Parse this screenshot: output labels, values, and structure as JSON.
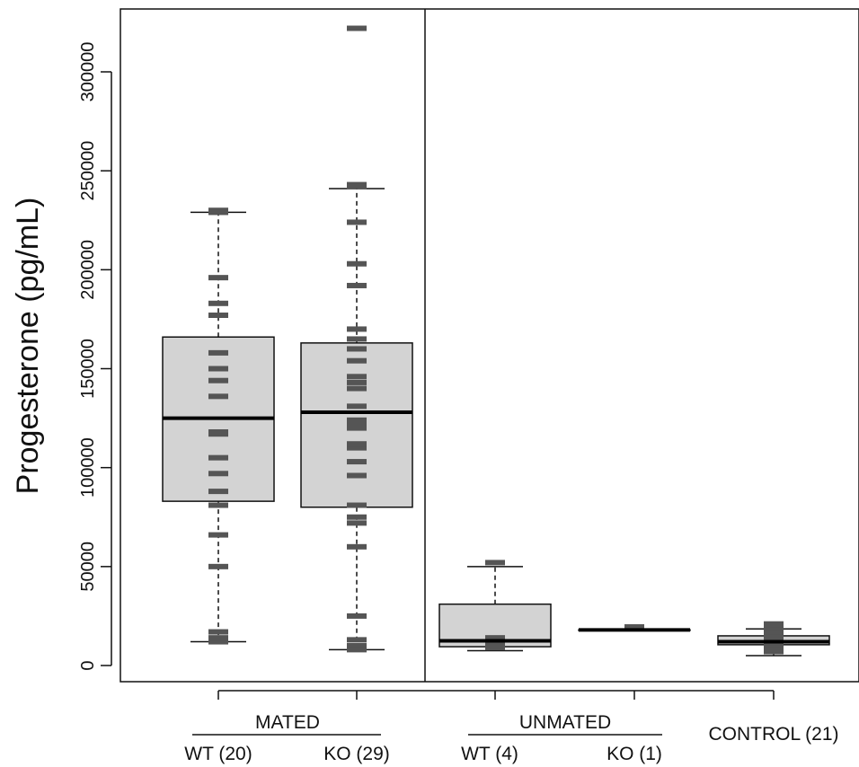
{
  "chart_data": {
    "type": "box",
    "ylabel": "Progesterone (pg/mL)",
    "xlabel": "",
    "ylim": [
      -8000,
      330000
    ],
    "yticks": [
      "0",
      "50000",
      "100000",
      "150000",
      "200000",
      "250000",
      "300000"
    ],
    "group_labels": [
      "MATED",
      "UNMATED"
    ],
    "boxes": [
      {
        "label": "WT (20)",
        "group": "MATED",
        "stats": {
          "min": 12000,
          "q1": 83000,
          "median": 125000,
          "q3": 166000,
          "max": 229000
        },
        "points": [
          12000,
          14000,
          17000,
          50000,
          66000,
          81000,
          88000,
          97000,
          105000,
          117000,
          118000,
          136000,
          144000,
          150000,
          158000,
          177000,
          183000,
          196000,
          229000,
          230000
        ]
      },
      {
        "label": "KO (29)",
        "group": "MATED",
        "stats": {
          "min": 8000,
          "q1": 80000,
          "median": 128000,
          "q3": 163000,
          "max": 241000
        },
        "points": [
          8000,
          10000,
          13000,
          25000,
          60000,
          72000,
          75000,
          81000,
          96000,
          103000,
          110000,
          112000,
          120000,
          122000,
          124000,
          131000,
          140000,
          143000,
          146000,
          154000,
          160000,
          165000,
          170000,
          192000,
          203000,
          224000,
          242000,
          243000,
          322000
        ]
      },
      {
        "label": "WT (4)",
        "group": "UNMATED",
        "stats": {
          "min": 7500,
          "q1": 9500,
          "median": 12500,
          "q3": 31000,
          "max": 50000
        },
        "points": [
          9000,
          11000,
          14000,
          52000
        ]
      },
      {
        "label": "KO (1)",
        "group": "UNMATED",
        "stats": {
          "min": 18000,
          "q1": 18000,
          "median": 18000,
          "q3": 18000,
          "max": 18000
        },
        "points": [
          19500
        ]
      },
      {
        "label": "CONTROL (21)",
        "group": "",
        "stats": {
          "min": 5000,
          "q1": 10500,
          "median": 12000,
          "q3": 15000,
          "max": 18500
        },
        "points": [
          7000,
          8000,
          9000,
          10000,
          11000,
          12000,
          12500,
          13000,
          14000,
          15000,
          16000,
          17000,
          18000,
          19000,
          20000,
          21000,
          10500,
          11500,
          13500,
          14500,
          20500
        ]
      }
    ]
  }
}
